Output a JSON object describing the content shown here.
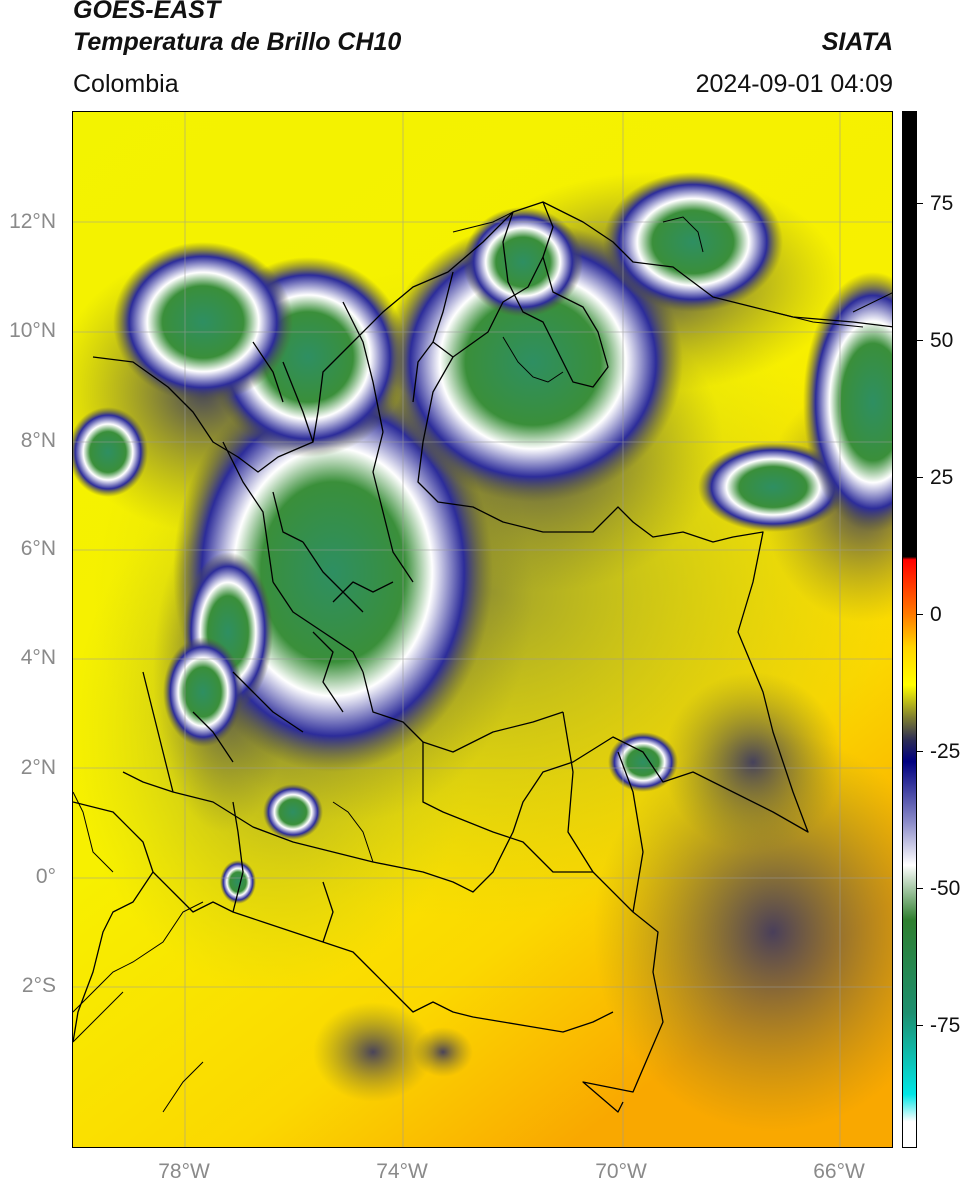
{
  "header": {
    "satellite": "GOES-EAST",
    "product": "Temperatura de Brillo CH10",
    "region": "Colombia",
    "agency": "SIATA",
    "timestamp": "2024-09-01 04:09"
  },
  "map": {
    "lat_labels": [
      "12°N",
      "10°N",
      "8°N",
      "6°N",
      "4°N",
      "2°N",
      "0°",
      "2°S"
    ],
    "lon_labels": [
      "78°W",
      "74°W",
      "70°W",
      "66°W"
    ],
    "lat_values": [
      12,
      10,
      8,
      6,
      4,
      2,
      0,
      -2
    ],
    "lon_values": [
      -78,
      -74,
      -70,
      -66
    ],
    "extent": {
      "lon_min": -80,
      "lon_max": -65,
      "lat_min": -5,
      "lat_max": 14
    }
  },
  "colorbar": {
    "labels": [
      "75",
      "50",
      "25",
      "0",
      "-25",
      "-50",
      "-75"
    ],
    "values": [
      75,
      50,
      25,
      0,
      -25,
      -50,
      -75
    ],
    "range": [
      -100,
      90
    ],
    "stops": [
      {
        "value": 90,
        "color": "#000000"
      },
      {
        "value": 8.5,
        "color": "#000000"
      },
      {
        "value": 8,
        "color": "#ff0000"
      },
      {
        "value": -2,
        "color": "#ff7a00"
      },
      {
        "value": -8,
        "color": "#ffd400"
      },
      {
        "value": -15,
        "color": "#ffff00"
      },
      {
        "value": -21,
        "color": "#7d7d30"
      },
      {
        "value": -25,
        "color": "#2d2d55"
      },
      {
        "value": -29,
        "color": "#000080"
      },
      {
        "value": -40,
        "color": "#8a8ac8"
      },
      {
        "value": -48,
        "color": "#ffffff"
      },
      {
        "value": -58,
        "color": "#2f7f2f"
      },
      {
        "value": -75,
        "color": "#1d8f6f"
      },
      {
        "value": -90,
        "color": "#00e6e6"
      },
      {
        "value": -95,
        "color": "#ffffff"
      },
      {
        "value": -100,
        "color": "#ffffff"
      }
    ]
  },
  "colors": {
    "background_warm": "#ffff00",
    "background_hot": "#f7a200",
    "cloud_cold": "#2e8f62",
    "cloud_edge": "#000080",
    "border_line": "#000000",
    "grid_line": "#808080"
  }
}
